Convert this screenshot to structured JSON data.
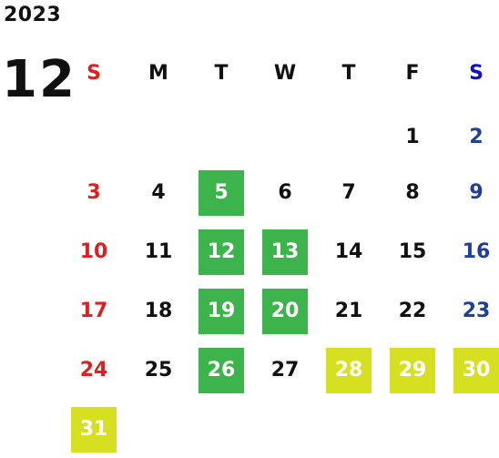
{
  "year": "2023",
  "month": "12",
  "weekdays": [
    "S",
    "M",
    "T",
    "W",
    "T",
    "F",
    "S"
  ],
  "colors": {
    "sunday": "#e02020",
    "saturday": "#1f3f98",
    "weekday": "#111111",
    "highlight_green": "#3cb44b",
    "highlight_yellow": "#d7df21",
    "highlight_text": "#ffffff"
  },
  "first_weekday_index": 5,
  "days_in_month": 31,
  "highlights": {
    "green": [
      5,
      12,
      13,
      19,
      20,
      26
    ],
    "yellow": [
      28,
      29,
      30,
      31
    ]
  }
}
